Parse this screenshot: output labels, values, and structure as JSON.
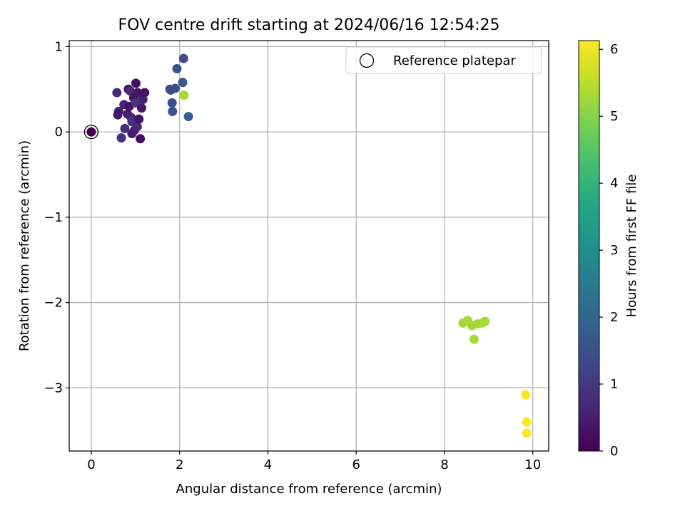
{
  "chart_data": {
    "type": "scatter",
    "title": "FOV centre drift starting at 2024/06/16 12:54:25",
    "xlabel": "Angular distance from reference (arcmin)",
    "ylabel": "Rotation from reference (arcmin)",
    "xlim": [
      -0.5,
      10.36
    ],
    "ylim": [
      -3.74,
      1.07
    ],
    "xticks": [
      0,
      2,
      4,
      6,
      8,
      10
    ],
    "xtick_labels": [
      "0",
      "2",
      "4",
      "6",
      "8",
      "10"
    ],
    "yticks": [
      1,
      0,
      -1,
      -2,
      -3
    ],
    "ytick_labels": [
      "1",
      "0",
      "−1",
      "−2",
      "−3"
    ],
    "grid": true,
    "legend": {
      "placement": "top-right",
      "entries": [
        {
          "label": "Reference platepar",
          "marker": "open-circle",
          "color": "#000000"
        }
      ]
    },
    "colorbar": {
      "label": "Hours from first FF file",
      "range": [
        0,
        6.13
      ],
      "ticks": [
        0,
        1,
        2,
        3,
        4,
        5,
        6
      ],
      "tick_labels": [
        "0",
        "1",
        "2",
        "3",
        "4",
        "5",
        "6"
      ],
      "colormap": "viridis"
    },
    "reference_point": {
      "x": 0,
      "y": 0
    },
    "points": [
      {
        "x": 0.0,
        "y": 0.0,
        "h": 0.0
      },
      {
        "x": 0.58,
        "y": 0.46,
        "h": 0.7
      },
      {
        "x": 0.62,
        "y": 0.24,
        "h": 0.5
      },
      {
        "x": 0.6,
        "y": 0.2,
        "h": 0.4
      },
      {
        "x": 0.68,
        "y": -0.07,
        "h": 0.9
      },
      {
        "x": 0.74,
        "y": 0.32,
        "h": 0.6
      },
      {
        "x": 0.76,
        "y": 0.04,
        "h": 0.8
      },
      {
        "x": 0.82,
        "y": 0.21,
        "h": 0.5
      },
      {
        "x": 0.84,
        "y": 0.5,
        "h": 0.2
      },
      {
        "x": 0.86,
        "y": 0.3,
        "h": 0.3
      },
      {
        "x": 0.88,
        "y": 0.48,
        "h": 0.7
      },
      {
        "x": 0.9,
        "y": 0.17,
        "h": 0.6
      },
      {
        "x": 0.92,
        "y": 0.12,
        "h": 0.9
      },
      {
        "x": 0.92,
        "y": -0.02,
        "h": 0.4
      },
      {
        "x": 0.96,
        "y": 0.4,
        "h": 0.3
      },
      {
        "x": 0.98,
        "y": 0.02,
        "h": 0.5
      },
      {
        "x": 1.0,
        "y": 0.34,
        "h": 0.9
      },
      {
        "x": 1.01,
        "y": 0.57,
        "h": 0.2
      },
      {
        "x": 1.04,
        "y": 0.06,
        "h": 0.7
      },
      {
        "x": 1.05,
        "y": 0.46,
        "h": 0.4
      },
      {
        "x": 1.08,
        "y": 0.15,
        "h": 0.3
      },
      {
        "x": 1.11,
        "y": -0.08,
        "h": 0.2
      },
      {
        "x": 1.14,
        "y": 0.28,
        "h": 0.4
      },
      {
        "x": 1.17,
        "y": 0.38,
        "h": 0.6
      },
      {
        "x": 1.21,
        "y": 0.46,
        "h": 0.3
      },
      {
        "x": 1.78,
        "y": 0.5,
        "h": 1.5
      },
      {
        "x": 1.8,
        "y": 0.49,
        "h": 1.4
      },
      {
        "x": 1.83,
        "y": 0.34,
        "h": 1.5
      },
      {
        "x": 1.84,
        "y": 0.24,
        "h": 1.6
      },
      {
        "x": 1.9,
        "y": 0.51,
        "h": 1.5
      },
      {
        "x": 1.94,
        "y": 0.74,
        "h": 1.6
      },
      {
        "x": 2.07,
        "y": 0.58,
        "h": 1.7
      },
      {
        "x": 2.09,
        "y": 0.86,
        "h": 1.4
      },
      {
        "x": 2.1,
        "y": 0.43,
        "h": 5.3
      },
      {
        "x": 2.2,
        "y": 0.18,
        "h": 1.8
      },
      {
        "x": 8.42,
        "y": -2.24,
        "h": 5.3
      },
      {
        "x": 8.52,
        "y": -2.21,
        "h": 5.3
      },
      {
        "x": 8.62,
        "y": -2.27,
        "h": 5.3
      },
      {
        "x": 8.67,
        "y": -2.43,
        "h": 5.3
      },
      {
        "x": 8.75,
        "y": -2.25,
        "h": 5.3
      },
      {
        "x": 8.85,
        "y": -2.24,
        "h": 5.3
      },
      {
        "x": 8.92,
        "y": -2.22,
        "h": 5.3
      },
      {
        "x": 9.84,
        "y": -3.08,
        "h": 6.1
      },
      {
        "x": 9.86,
        "y": -3.4,
        "h": 6.1
      },
      {
        "x": 9.86,
        "y": -3.53,
        "h": 6.1
      }
    ]
  }
}
